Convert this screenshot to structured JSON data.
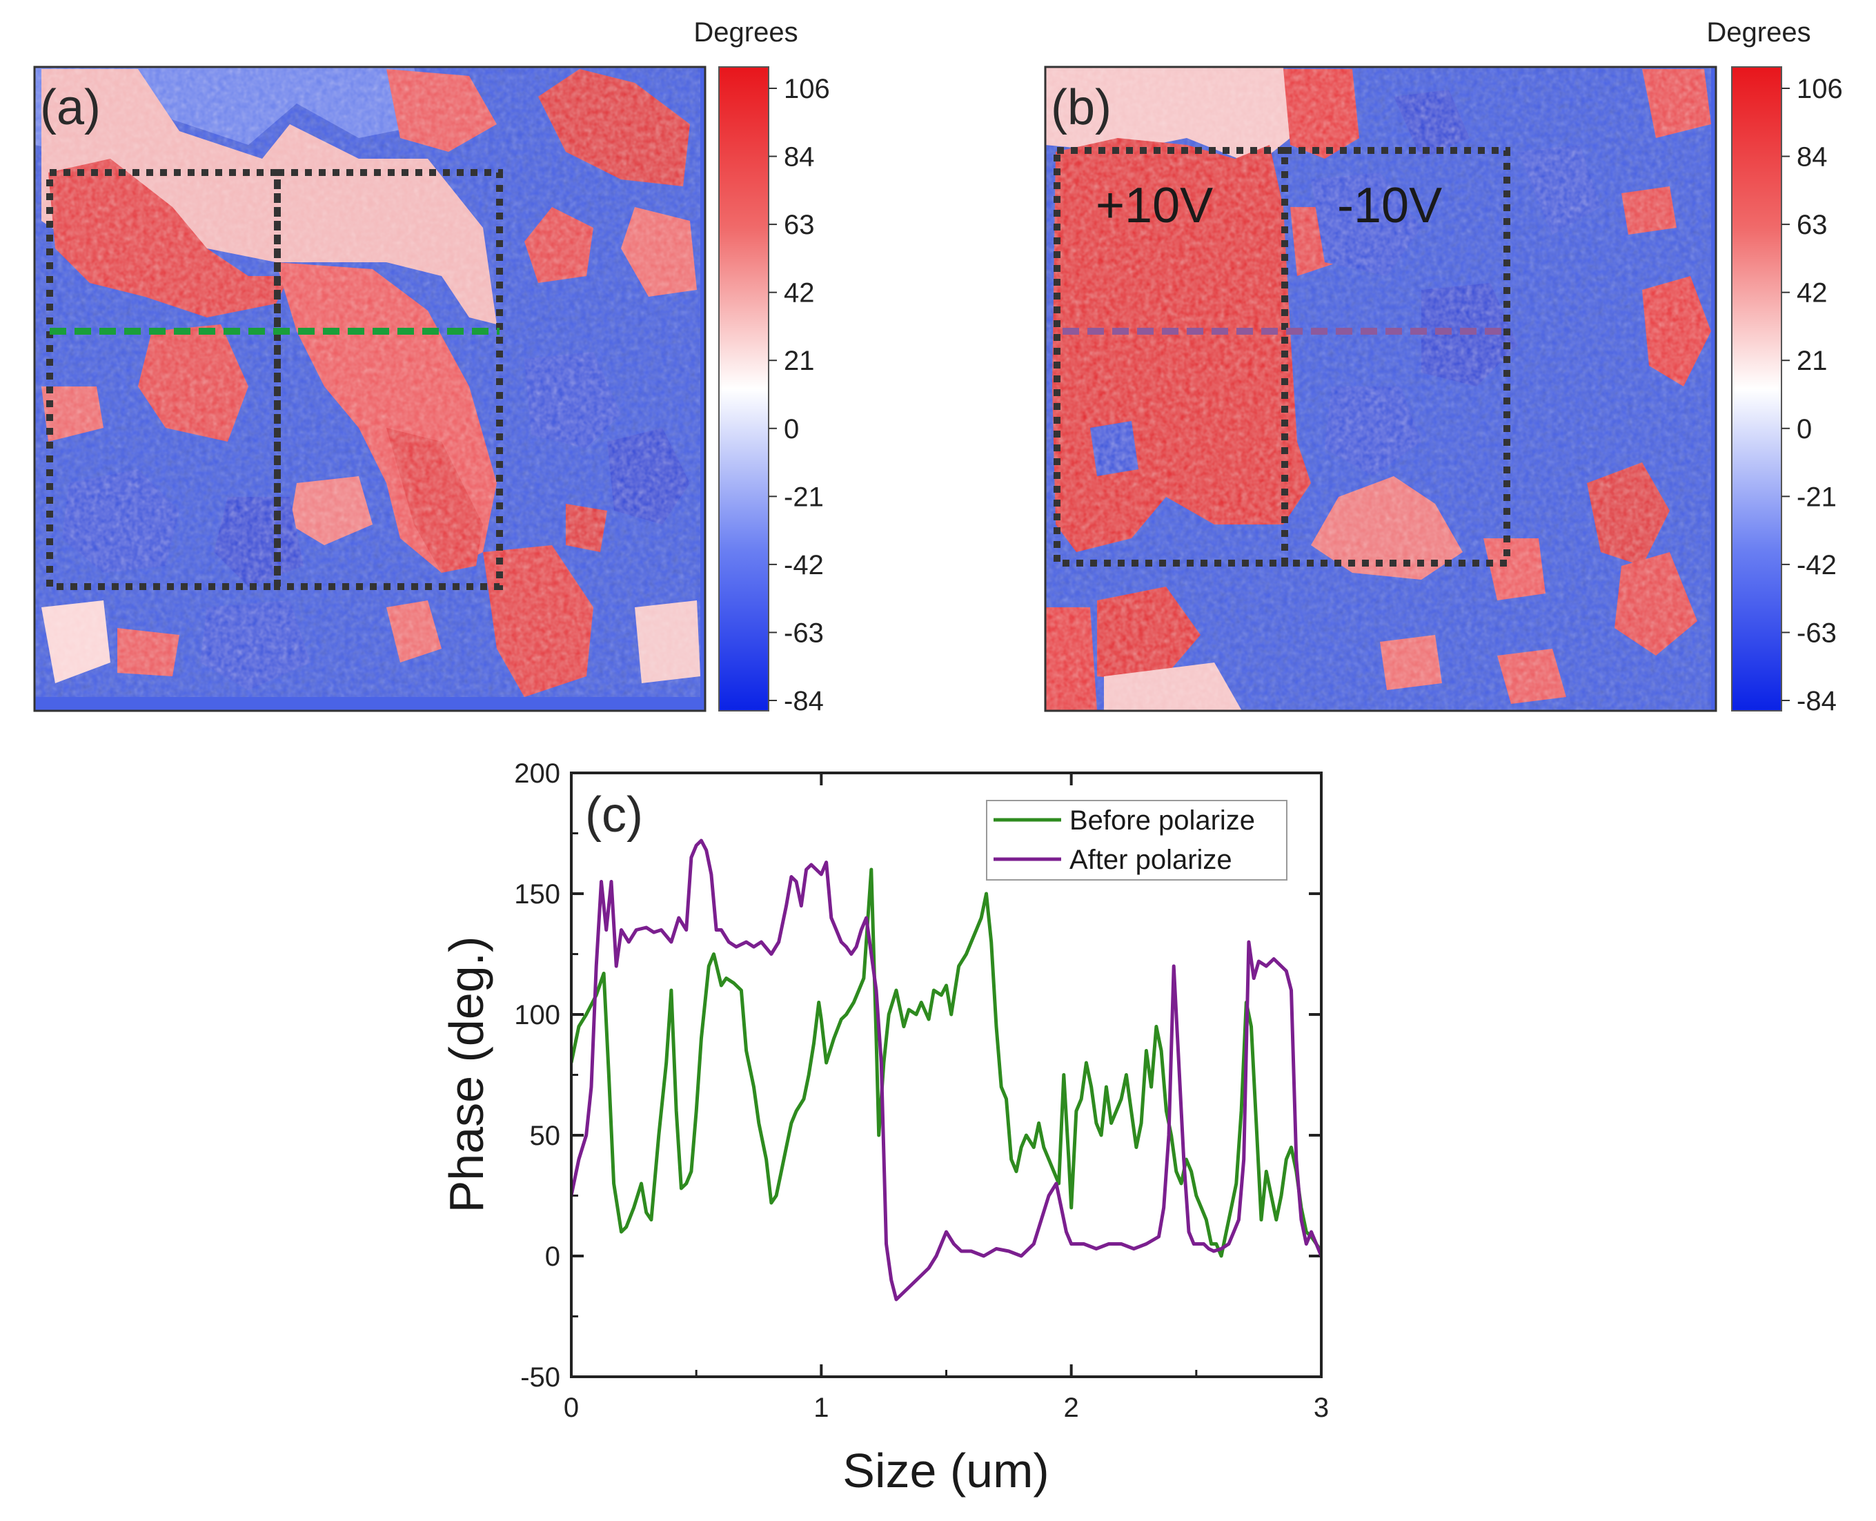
{
  "panels": {
    "a": {
      "label": "(a)",
      "colorbar": {
        "title": "Degrees",
        "ticks": [
          "106",
          "84",
          "63",
          "42",
          "21",
          "0",
          "-21",
          "-42",
          "-63",
          "-84"
        ]
      },
      "annotations": [],
      "scan_line_color": "#1a9e3a"
    },
    "b": {
      "label": "(b)",
      "colorbar": {
        "title": "Degrees",
        "ticks": [
          "106",
          "84",
          "63",
          "42",
          "21",
          "0",
          "-21",
          "-42",
          "-63",
          "-84"
        ]
      },
      "annotations": [
        "+10V",
        "-10V"
      ],
      "scan_line_color": "#8e5a9b"
    }
  },
  "colors": {
    "positive": "#e8242a",
    "negative": "#1a3fe0",
    "neutral": "#ffffff",
    "before": "#2e8b1f",
    "after": "#7b1f8f"
  },
  "chart_data": {
    "type": "line",
    "panel_label": "(c)",
    "title": "",
    "xlabel": "Size (um)",
    "ylabel": "Phase (deg.)",
    "xlim": [
      0,
      3
    ],
    "ylim": [
      -50,
      200
    ],
    "xticks": [
      "0",
      "1",
      "2",
      "3"
    ],
    "yticks": [
      "-50",
      "0",
      "50",
      "100",
      "150",
      "200"
    ],
    "legend_position": "top-right",
    "series": [
      {
        "name": "Before polarize",
        "color": "#2e8b1f",
        "x": [
          0,
          0.03,
          0.06,
          0.1,
          0.13,
          0.15,
          0.17,
          0.2,
          0.22,
          0.25,
          0.28,
          0.3,
          0.32,
          0.35,
          0.38,
          0.4,
          0.42,
          0.44,
          0.46,
          0.48,
          0.5,
          0.52,
          0.55,
          0.57,
          0.6,
          0.62,
          0.65,
          0.68,
          0.7,
          0.73,
          0.75,
          0.78,
          0.8,
          0.82,
          0.84,
          0.86,
          0.88,
          0.9,
          0.93,
          0.95,
          0.97,
          0.99,
          1.0,
          1.02,
          1.05,
          1.08,
          1.1,
          1.13,
          1.15,
          1.17,
          1.2,
          1.22,
          1.23,
          1.25,
          1.27,
          1.3,
          1.33,
          1.35,
          1.38,
          1.4,
          1.43,
          1.45,
          1.48,
          1.5,
          1.52,
          1.55,
          1.58,
          1.6,
          1.62,
          1.64,
          1.66,
          1.68,
          1.7,
          1.72,
          1.74,
          1.76,
          1.78,
          1.8,
          1.82,
          1.85,
          1.87,
          1.89,
          1.91,
          1.93,
          1.95,
          1.97,
          1.99,
          2.0,
          2.02,
          2.04,
          2.06,
          2.08,
          2.1,
          2.12,
          2.14,
          2.16,
          2.18,
          2.2,
          2.22,
          2.24,
          2.26,
          2.28,
          2.3,
          2.32,
          2.34,
          2.36,
          2.38,
          2.4,
          2.42,
          2.44,
          2.46,
          2.48,
          2.5,
          2.52,
          2.54,
          2.56,
          2.58,
          2.6,
          2.62,
          2.64,
          2.66,
          2.68,
          2.7,
          2.72,
          2.74,
          2.76,
          2.78,
          2.8,
          2.82,
          2.84,
          2.86,
          2.88,
          2.9,
          2.92,
          2.94,
          2.96,
          2.98,
          3.0
        ],
        "values": [
          80,
          95,
          100,
          108,
          117,
          75,
          30,
          10,
          12,
          20,
          30,
          18,
          15,
          50,
          80,
          110,
          60,
          28,
          30,
          35,
          60,
          90,
          120,
          125,
          112,
          115,
          113,
          110,
          85,
          70,
          55,
          40,
          22,
          25,
          35,
          45,
          55,
          60,
          65,
          75,
          88,
          105,
          98,
          80,
          90,
          98,
          100,
          105,
          110,
          115,
          160,
          90,
          50,
          80,
          100,
          110,
          95,
          102,
          100,
          105,
          98,
          110,
          108,
          112,
          100,
          120,
          125,
          130,
          135,
          140,
          150,
          130,
          95,
          70,
          65,
          40,
          35,
          45,
          50,
          45,
          55,
          45,
          40,
          35,
          30,
          75,
          40,
          20,
          60,
          65,
          80,
          70,
          55,
          50,
          70,
          55,
          60,
          65,
          75,
          60,
          45,
          55,
          85,
          70,
          95,
          85,
          60,
          50,
          35,
          30,
          40,
          35,
          25,
          20,
          15,
          5,
          5,
          0,
          10,
          20,
          30,
          60,
          105,
          95,
          55,
          15,
          35,
          25,
          15,
          25,
          40,
          45,
          35,
          20,
          10,
          8,
          5,
          2
        ],
        "legend_label": "Before polarize"
      },
      {
        "name": "After polarize",
        "color": "#7b1f8f",
        "x": [
          0,
          0.03,
          0.06,
          0.08,
          0.1,
          0.12,
          0.14,
          0.16,
          0.18,
          0.2,
          0.23,
          0.26,
          0.3,
          0.33,
          0.36,
          0.4,
          0.43,
          0.46,
          0.48,
          0.5,
          0.52,
          0.54,
          0.56,
          0.58,
          0.6,
          0.63,
          0.66,
          0.7,
          0.73,
          0.76,
          0.8,
          0.83,
          0.86,
          0.88,
          0.9,
          0.92,
          0.94,
          0.96,
          0.98,
          1.0,
          1.02,
          1.04,
          1.06,
          1.08,
          1.1,
          1.12,
          1.14,
          1.16,
          1.18,
          1.2,
          1.22,
          1.24,
          1.26,
          1.28,
          1.3,
          1.33,
          1.36,
          1.4,
          1.43,
          1.46,
          1.5,
          1.53,
          1.56,
          1.6,
          1.65,
          1.7,
          1.75,
          1.8,
          1.85,
          1.88,
          1.91,
          1.94,
          1.96,
          1.98,
          2.0,
          2.05,
          2.1,
          2.15,
          2.2,
          2.25,
          2.3,
          2.35,
          2.37,
          2.39,
          2.41,
          2.43,
          2.45,
          2.47,
          2.49,
          2.51,
          2.53,
          2.55,
          2.57,
          2.6,
          2.63,
          2.65,
          2.67,
          2.69,
          2.71,
          2.73,
          2.75,
          2.78,
          2.81,
          2.84,
          2.86,
          2.88,
          2.9,
          2.92,
          2.94,
          2.96,
          2.98,
          3.0
        ],
        "values": [
          25,
          40,
          50,
          70,
          120,
          155,
          135,
          155,
          120,
          135,
          130,
          135,
          136,
          134,
          135,
          130,
          140,
          135,
          165,
          170,
          172,
          168,
          158,
          135,
          135,
          130,
          128,
          130,
          128,
          130,
          125,
          130,
          145,
          157,
          155,
          145,
          160,
          162,
          160,
          158,
          163,
          140,
          135,
          130,
          128,
          125,
          128,
          135,
          140,
          125,
          110,
          80,
          5,
          -10,
          -18,
          -15,
          -12,
          -8,
          -5,
          0,
          10,
          5,
          2,
          2,
          0,
          3,
          2,
          0,
          5,
          15,
          25,
          30,
          20,
          10,
          5,
          5,
          3,
          5,
          5,
          3,
          5,
          8,
          20,
          50,
          120,
          80,
          40,
          10,
          5,
          5,
          5,
          3,
          2,
          3,
          5,
          10,
          15,
          40,
          130,
          115,
          122,
          120,
          123,
          120,
          118,
          110,
          40,
          15,
          5,
          10,
          5,
          0
        ],
        "legend_label": "After polarize"
      }
    ]
  }
}
